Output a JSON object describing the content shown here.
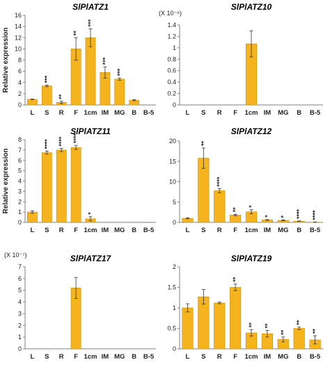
{
  "colors": {
    "bar": "#F5B41D",
    "bar_edge": "#C98E0A",
    "axis": "#7f7f7f",
    "text": "#222222"
  },
  "chart_data": [
    {
      "type": "bar",
      "title": "SlPlATZ1",
      "ylabel": "Relative expression",
      "scale_note": "",
      "categories": [
        "L",
        "S",
        "R",
        "F",
        "1cm",
        "IM",
        "MG",
        "B",
        "B-5"
      ],
      "values": [
        1.0,
        3.4,
        0.45,
        10.0,
        12.0,
        5.8,
        4.6,
        0.85,
        0
      ],
      "errors": [
        0.05,
        0.15,
        0.2,
        2.0,
        1.6,
        1.0,
        0.2,
        0.1,
        0
      ],
      "stars": [
        "",
        "***",
        "**",
        "**",
        "***",
        "***",
        "***",
        "",
        ""
      ],
      "ylim": [
        0,
        16
      ],
      "yticks": [
        0,
        2,
        4,
        6,
        8,
        10,
        12,
        14,
        16
      ],
      "ytick_labels": [
        "0",
        "2",
        "4",
        "6",
        "8",
        "10",
        "12",
        "14",
        "16"
      ]
    },
    {
      "type": "bar",
      "title": "SlPlATZ10",
      "ylabel": "",
      "scale_note": "(X 10⁻⁶)",
      "categories": [
        "L",
        "S",
        "R",
        "F",
        "1cm",
        "IM",
        "MG",
        "B",
        "B-5"
      ],
      "values": [
        0,
        0,
        0,
        0,
        1.07,
        0,
        0,
        0,
        0
      ],
      "errors": [
        0,
        0,
        0,
        0,
        0.23,
        0,
        0,
        0,
        0
      ],
      "stars": [
        "",
        "",
        "",
        "",
        "",
        "",
        "",
        "",
        ""
      ],
      "ylim": [
        0,
        1.4
      ],
      "yticks": [
        0,
        0.2,
        0.4,
        0.6,
        0.8,
        1.0,
        1.2,
        1.4
      ],
      "ytick_labels": [
        "0",
        "0.2",
        "0.4",
        "0.6",
        "0.8",
        "1",
        "1.2",
        "1.4"
      ]
    },
    {
      "type": "bar",
      "title": "SlPlATZ11",
      "ylabel": "Relative expression",
      "scale_note": "",
      "categories": [
        "L",
        "S",
        "R",
        "F",
        "1cm",
        "IM",
        "MG",
        "B",
        "B-5"
      ],
      "values": [
        1.0,
        6.75,
        7.0,
        7.25,
        0.35,
        0,
        0,
        0,
        0
      ],
      "errors": [
        0.12,
        0.15,
        0.15,
        0.2,
        0.2,
        0,
        0,
        0,
        0
      ],
      "stars": [
        "",
        "****",
        "****",
        "****",
        "*",
        "",
        "",
        "",
        ""
      ],
      "ylim": [
        0,
        8
      ],
      "yticks": [
        0,
        1,
        2,
        3,
        4,
        5,
        6,
        7,
        8
      ],
      "ytick_labels": [
        "0",
        "1",
        "2",
        "3",
        "4",
        "5",
        "6",
        "7",
        "8"
      ]
    },
    {
      "type": "bar",
      "title": "SlPlATZ12",
      "ylabel": "",
      "scale_note": "",
      "categories": [
        "L",
        "S",
        "R",
        "F",
        "1cm",
        "IM",
        "MG",
        "B",
        "B-5"
      ],
      "values": [
        1.0,
        15.8,
        7.8,
        1.8,
        2.6,
        0.6,
        0.5,
        0.3,
        0.05
      ],
      "errors": [
        0.1,
        2.5,
        0.5,
        0.2,
        0.5,
        0.1,
        0.1,
        0.05,
        0.02
      ],
      "stars": [
        "",
        "**",
        "****",
        "**",
        "*",
        "*",
        "*",
        "****",
        "****"
      ],
      "ylim": [
        0,
        20
      ],
      "yticks": [
        0,
        5,
        10,
        15,
        20
      ],
      "ytick_labels": [
        "0",
        "5",
        "10",
        "15",
        "20"
      ]
    },
    {
      "type": "bar",
      "title": "SlPlATZ17",
      "ylabel": "",
      "scale_note": "(X 10⁻⁷)",
      "categories": [
        "L",
        "S",
        "R",
        "F",
        "1cm",
        "IM",
        "MG",
        "B",
        "B-5"
      ],
      "values": [
        0,
        0,
        0,
        5.2,
        0,
        0,
        0,
        0,
        0
      ],
      "errors": [
        0,
        0,
        0,
        0.9,
        0,
        0,
        0,
        0,
        0
      ],
      "stars": [
        "",
        "",
        "",
        "",
        "",
        "",
        "",
        "",
        ""
      ],
      "ylim": [
        0,
        7
      ],
      "yticks": [
        0,
        1,
        2,
        3,
        4,
        5,
        6,
        7
      ],
      "ytick_labels": [
        "0",
        "1",
        "2",
        "3",
        "4",
        "5",
        "6",
        "7"
      ]
    },
    {
      "type": "bar",
      "title": "SlPlATZ19",
      "ylabel": "",
      "scale_note": "",
      "categories": [
        "L",
        "S",
        "R",
        "F",
        "1cm",
        "IM",
        "MG",
        "B",
        "B-5"
      ],
      "values": [
        1.0,
        1.27,
        1.12,
        1.5,
        0.39,
        0.37,
        0.23,
        0.5,
        0.22
      ],
      "errors": [
        0.1,
        0.18,
        0.02,
        0.08,
        0.08,
        0.08,
        0.06,
        0.03,
        0.1
      ],
      "stars": [
        "",
        "",
        "",
        "**",
        "**",
        "**",
        "**",
        "**",
        "**"
      ],
      "ylim": [
        0,
        2
      ],
      "yticks": [
        0,
        0.5,
        1.0,
        1.5,
        2.0
      ],
      "ytick_labels": [
        "0",
        "0.5",
        "1",
        "1.5",
        "2"
      ]
    }
  ]
}
